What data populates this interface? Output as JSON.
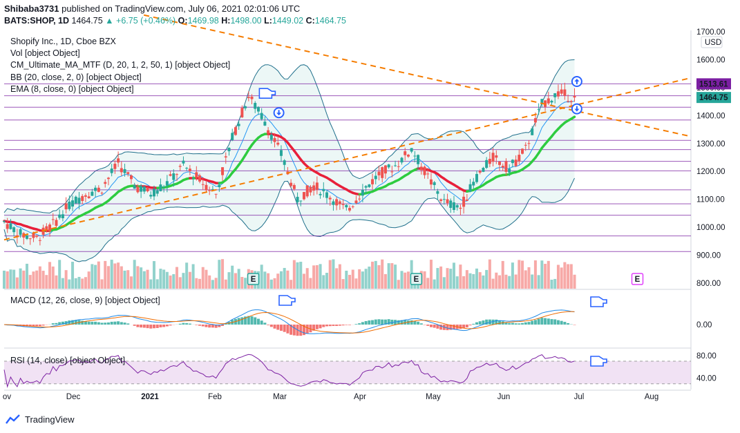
{
  "header": {
    "user": "Shibaba3731",
    "published_text": "published on TradingView.com, July 06, 2021 02:01:06 UTC"
  },
  "ohlc": {
    "symbol": "BATS:SHOP, 1D",
    "last": "1464.75",
    "change": "▲ +6.75 (+0.46%)",
    "o_label": "O:",
    "o_value": "1469.98",
    "h_label": "H:",
    "h_value": "1498.00",
    "l_label": "L:",
    "l_value": "1449.02",
    "c_label": "C:",
    "c_value": "1464.75"
  },
  "legend": [
    "Shopify Inc., 1D, Cboe BZX",
    "Vol [object Object]",
    "CM_Ultimate_MA_MTF (D, 20, 1, 2, 50, 1) [object Object]",
    "BB (20, close, 2, 0) [object Object]",
    "EMA (8, close, 0) [object Object]"
  ],
  "macd_label": "MACD (12, 26, close, 9) [object Object]",
  "rsi_label": "RSI (14, close) [object Object]",
  "footer": {
    "brand": "TradingView"
  },
  "colors": {
    "up": "#26a69a",
    "down": "#ef5350",
    "ma_up": "#2ecc40",
    "ma_down": "#e8203a",
    "trend": "#f57c00",
    "level": "#7b1fa2",
    "bb": "#1f6f8b",
    "ema": "#2196f3",
    "rsi": "#7b1fa2",
    "macd": "#1e88e5",
    "signal": "#ef6c00"
  },
  "chart_data": [
    {
      "type": "candlestick",
      "title": "Shopify Inc., 1D, Cboe BZX",
      "price_axis": {
        "unit": "USD",
        "ticks": [
          800,
          900,
          1000,
          1100,
          1200,
          1300,
          1400,
          1500,
          1600,
          1700
        ],
        "tick_labels": [
          "800.00",
          "900.00",
          "1000.00",
          "1100.00",
          "1200.00",
          "1300.00",
          "1400.00",
          "1500.00",
          "1600.00",
          "1700.00"
        ],
        "ylim": [
          780,
          1705
        ]
      },
      "time_axis": {
        "labels": [
          "ov",
          "Dec",
          "2021",
          "Feb",
          "Mar",
          "Apr",
          "May",
          "Jun",
          "Jul",
          "Aug"
        ],
        "xlim": [
          "2020-11-02",
          "2021-08-24"
        ]
      },
      "price_markers": [
        {
          "label": "1513.61",
          "value": 1513.61,
          "color": "#7b1fa2"
        },
        {
          "label": "1464.75",
          "value": 1464.75,
          "color": "#26a69a"
        }
      ],
      "close_series": [
        [
          "2020-11-02",
          1020
        ],
        [
          "2020-11-09",
          975
        ],
        [
          "2020-11-16",
          960
        ],
        [
          "2020-11-23",
          1010
        ],
        [
          "2020-11-30",
          1080
        ],
        [
          "2020-12-07",
          1120
        ],
        [
          "2020-12-14",
          1140
        ],
        [
          "2020-12-21",
          1230
        ],
        [
          "2020-12-28",
          1150
        ],
        [
          "2021-01-04",
          1120
        ],
        [
          "2021-01-11",
          1160
        ],
        [
          "2021-01-18",
          1220
        ],
        [
          "2021-01-25",
          1170
        ],
        [
          "2021-02-01",
          1120
        ],
        [
          "2021-02-08",
          1320
        ],
        [
          "2021-02-15",
          1470
        ],
        [
          "2021-02-22",
          1380
        ],
        [
          "2021-03-01",
          1260
        ],
        [
          "2021-03-08",
          1100
        ],
        [
          "2021-03-15",
          1150
        ],
        [
          "2021-03-22",
          1110
        ],
        [
          "2021-03-29",
          1060
        ],
        [
          "2021-04-05",
          1130
        ],
        [
          "2021-04-12",
          1190
        ],
        [
          "2021-04-19",
          1220
        ],
        [
          "2021-04-26",
          1280
        ],
        [
          "2021-05-03",
          1180
        ],
        [
          "2021-05-10",
          1090
        ],
        [
          "2021-05-17",
          1070
        ],
        [
          "2021-05-24",
          1180
        ],
        [
          "2021-05-31",
          1250
        ],
        [
          "2021-06-07",
          1210
        ],
        [
          "2021-06-14",
          1280
        ],
        [
          "2021-06-21",
          1440
        ],
        [
          "2021-06-28",
          1480
        ],
        [
          "2021-07-05",
          1464.75
        ]
      ],
      "horizontal_levels": [
        1513.61,
        1471,
        1430,
        1384,
        1311,
        1278,
        1236,
        1202,
        1134,
        1084,
        1043,
        969,
        913
      ],
      "trend_lines": [
        {
          "from": [
            "2020-11-02",
            955
          ],
          "to": [
            "2021-08-24",
            1535
          ]
        },
        {
          "from": [
            "2021-01-01",
            1760
          ],
          "to": [
            "2021-08-24",
            1325
          ]
        }
      ],
      "annotations": [
        {
          "type": "hand-pointer",
          "date": "2021-02-22",
          "value": 1482
        },
        {
          "type": "arrow-down",
          "date": "2021-02-28",
          "value": 1410
        },
        {
          "type": "arrow-up",
          "date": "2021-07-06",
          "value": 1522
        },
        {
          "type": "arrow-down",
          "date": "2021-07-06",
          "value": 1424
        },
        {
          "type": "earnings",
          "label": "E",
          "date": "2021-02-17"
        },
        {
          "type": "earnings",
          "label": "E",
          "date": "2021-04-28"
        },
        {
          "type": "earnings-upcoming",
          "label": "E",
          "date": "2021-08-01"
        }
      ]
    },
    {
      "type": "line",
      "title": "MACD (12, 26, close, 9)",
      "y_ticks": [
        0
      ],
      "y_tick_labels": [
        "0.00"
      ]
    },
    {
      "type": "line",
      "title": "RSI (14, close)",
      "y_ticks": [
        80,
        40
      ],
      "y_tick_labels": [
        "80.00",
        "40.00"
      ],
      "band": [
        70,
        30
      ],
      "ylim": [
        20,
        92
      ]
    }
  ]
}
